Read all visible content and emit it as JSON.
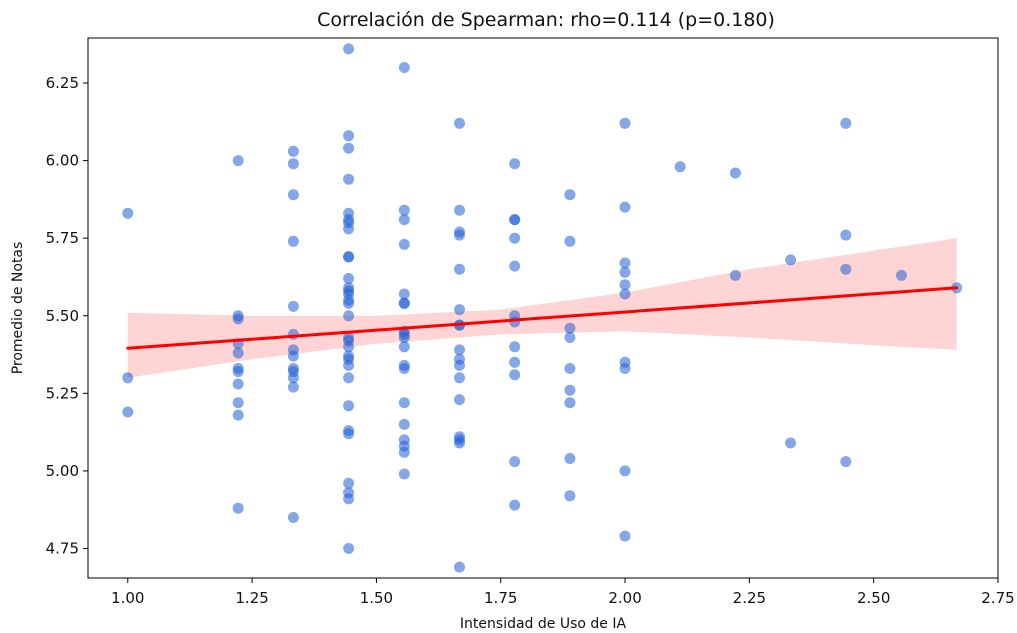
{
  "chart_data": {
    "type": "scatter",
    "title": "Correlación de Spearman: rho=0.114 (p=0.180)",
    "xlabel": "Intensidad de Uso de IA",
    "ylabel": "Promedio de Notas",
    "xlim": [
      0.92,
      2.75
    ],
    "ylim": [
      4.655,
      6.395
    ],
    "xticks": [
      "1.00",
      "1.25",
      "1.50",
      "1.75",
      "2.00",
      "2.25",
      "2.50",
      "2.75"
    ],
    "yticks": [
      "4.75",
      "5.00",
      "5.25",
      "5.50",
      "5.75",
      "6.00",
      "6.25"
    ],
    "grid": false,
    "colors": {
      "points": "#1f5fd6",
      "fit_line": "#ff0000",
      "ci_band": "#ffcccc"
    },
    "regression": {
      "x0": 1.0,
      "y0": 5.395,
      "x1": 2.667,
      "y1": 5.59
    },
    "ci_band": {
      "x": [
        1.0,
        1.25,
        1.5,
        1.75,
        2.0,
        2.25,
        2.5,
        2.667
      ],
      "lower": [
        5.3,
        5.36,
        5.41,
        5.44,
        5.45,
        5.43,
        5.405,
        5.39
      ],
      "upper": [
        5.51,
        5.5,
        5.5,
        5.52,
        5.575,
        5.65,
        5.71,
        5.75
      ]
    },
    "points": [
      [
        1.0,
        5.83
      ],
      [
        1.0,
        5.3
      ],
      [
        1.0,
        5.19
      ],
      [
        1.222,
        6.0
      ],
      [
        1.222,
        5.5
      ],
      [
        1.222,
        5.49
      ],
      [
        1.222,
        5.41
      ],
      [
        1.222,
        5.38
      ],
      [
        1.222,
        5.33
      ],
      [
        1.222,
        5.32
      ],
      [
        1.222,
        5.28
      ],
      [
        1.222,
        5.22
      ],
      [
        1.222,
        5.18
      ],
      [
        1.222,
        4.88
      ],
      [
        1.333,
        6.03
      ],
      [
        1.333,
        5.99
      ],
      [
        1.333,
        5.89
      ],
      [
        1.333,
        5.74
      ],
      [
        1.333,
        5.53
      ],
      [
        1.333,
        5.44
      ],
      [
        1.333,
        5.39
      ],
      [
        1.333,
        5.37
      ],
      [
        1.333,
        5.33
      ],
      [
        1.333,
        5.32
      ],
      [
        1.333,
        5.3
      ],
      [
        1.333,
        5.27
      ],
      [
        1.333,
        4.85
      ],
      [
        1.444,
        6.36
      ],
      [
        1.444,
        6.08
      ],
      [
        1.444,
        6.04
      ],
      [
        1.444,
        5.94
      ],
      [
        1.444,
        5.83
      ],
      [
        1.444,
        5.81
      ],
      [
        1.444,
        5.8
      ],
      [
        1.444,
        5.78
      ],
      [
        1.444,
        5.69
      ],
      [
        1.444,
        5.69
      ],
      [
        1.444,
        5.62
      ],
      [
        1.444,
        5.59
      ],
      [
        1.444,
        5.58
      ],
      [
        1.444,
        5.57
      ],
      [
        1.444,
        5.55
      ],
      [
        1.444,
        5.54
      ],
      [
        1.444,
        5.5
      ],
      [
        1.444,
        5.43
      ],
      [
        1.444,
        5.42
      ],
      [
        1.444,
        5.4
      ],
      [
        1.444,
        5.37
      ],
      [
        1.444,
        5.36
      ],
      [
        1.444,
        5.34
      ],
      [
        1.444,
        5.3
      ],
      [
        1.444,
        5.21
      ],
      [
        1.444,
        5.13
      ],
      [
        1.444,
        5.12
      ],
      [
        1.444,
        4.96
      ],
      [
        1.444,
        4.93
      ],
      [
        1.444,
        4.91
      ],
      [
        1.444,
        4.75
      ],
      [
        1.556,
        6.3
      ],
      [
        1.556,
        5.84
      ],
      [
        1.556,
        5.81
      ],
      [
        1.556,
        5.73
      ],
      [
        1.556,
        5.57
      ],
      [
        1.556,
        5.54
      ],
      [
        1.556,
        5.54
      ],
      [
        1.556,
        5.45
      ],
      [
        1.556,
        5.44
      ],
      [
        1.556,
        5.43
      ],
      [
        1.556,
        5.4
      ],
      [
        1.556,
        5.34
      ],
      [
        1.556,
        5.33
      ],
      [
        1.556,
        5.22
      ],
      [
        1.556,
        5.15
      ],
      [
        1.556,
        5.1
      ],
      [
        1.556,
        5.08
      ],
      [
        1.556,
        5.06
      ],
      [
        1.556,
        4.99
      ],
      [
        1.667,
        6.12
      ],
      [
        1.667,
        5.84
      ],
      [
        1.667,
        5.77
      ],
      [
        1.667,
        5.76
      ],
      [
        1.667,
        5.65
      ],
      [
        1.667,
        5.52
      ],
      [
        1.667,
        5.47
      ],
      [
        1.667,
        5.47
      ],
      [
        1.667,
        5.39
      ],
      [
        1.667,
        5.36
      ],
      [
        1.667,
        5.34
      ],
      [
        1.667,
        5.3
      ],
      [
        1.667,
        5.23
      ],
      [
        1.667,
        5.11
      ],
      [
        1.667,
        5.1
      ],
      [
        1.667,
        5.09
      ],
      [
        1.667,
        4.69
      ],
      [
        1.778,
        5.99
      ],
      [
        1.778,
        5.81
      ],
      [
        1.778,
        5.81
      ],
      [
        1.778,
        5.75
      ],
      [
        1.778,
        5.66
      ],
      [
        1.778,
        5.5
      ],
      [
        1.778,
        5.48
      ],
      [
        1.778,
        5.4
      ],
      [
        1.778,
        5.35
      ],
      [
        1.778,
        5.31
      ],
      [
        1.778,
        5.03
      ],
      [
        1.778,
        4.89
      ],
      [
        1.889,
        5.89
      ],
      [
        1.889,
        5.74
      ],
      [
        1.889,
        5.46
      ],
      [
        1.889,
        5.43
      ],
      [
        1.889,
        5.33
      ],
      [
        1.889,
        5.26
      ],
      [
        1.889,
        5.22
      ],
      [
        1.889,
        5.04
      ],
      [
        1.889,
        4.92
      ],
      [
        2.0,
        6.12
      ],
      [
        2.0,
        5.85
      ],
      [
        2.0,
        5.67
      ],
      [
        2.0,
        5.64
      ],
      [
        2.0,
        5.6
      ],
      [
        2.0,
        5.57
      ],
      [
        2.0,
        5.35
      ],
      [
        2.0,
        5.33
      ],
      [
        2.0,
        5.0
      ],
      [
        2.0,
        4.79
      ],
      [
        2.111,
        5.98
      ],
      [
        2.222,
        5.96
      ],
      [
        2.222,
        5.63
      ],
      [
        2.333,
        5.68
      ],
      [
        2.333,
        5.09
      ],
      [
        2.444,
        6.12
      ],
      [
        2.444,
        5.76
      ],
      [
        2.444,
        5.65
      ],
      [
        2.444,
        5.03
      ],
      [
        2.556,
        5.63
      ],
      [
        2.667,
        5.59
      ]
    ]
  }
}
